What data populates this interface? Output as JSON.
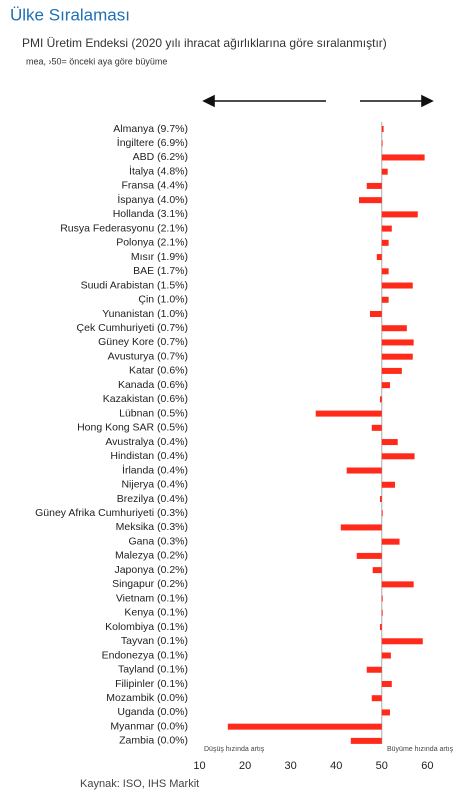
{
  "chart_data": {
    "type": "hbar",
    "title": "Ülke Sıralaması",
    "subtitle": "PMI Üretim Endeksi (2020 yılı ihracat ağırlıklarına göre sıralanmıştır)",
    "note": "mea, ›50= önceki aya göre büyüme",
    "annotations": [
      "Düşüş hızında artış",
      "Büyüme hızında artış"
    ],
    "source": "Kaynak: ISO, IHS Markit",
    "categories": [
      "Almanya (9.7%)",
      "İngiltere (6.9%)",
      "ABD (6.2%)",
      "İtalya (4.8%)",
      "Fransa (4.4%)",
      "İspanya (4.0%)",
      "Hollanda (3.1%)",
      "Rusya Federasyonu (2.1%)",
      "Polonya (2.1%)",
      "Mısır (1.9%)",
      "BAE (1.7%)",
      "Suudi Arabistan (1.5%)",
      "Çin (1.0%)",
      "Yunanistan (1.0%)",
      "Çek Cumhuriyeti (0.7%)",
      "Güney Kore (0.7%)",
      "Avusturya (0.7%)",
      "Katar (0.6%)",
      "Kanada (0.6%)",
      "Kazakistan (0.6%)",
      "Lübnan (0.5%)",
      "Hong Kong SAR (0.5%)",
      "Avustralya (0.4%)",
      "Hindistan (0.4%)",
      "İrlanda (0.4%)",
      "Nijerya (0.4%)",
      "Brezilya (0.4%)",
      "Güney Afrika Cumhuriyeti (0.3%)",
      "Meksika (0.3%)",
      "Gana (0.3%)",
      "Malezya (0.2%)",
      "Japonya (0.2%)",
      "Singapur (0.2%)",
      "Vietnam (0.1%)",
      "Kenya (0.1%)",
      "Kolombiya (0.1%)",
      "Tayvan (0.1%)",
      "Endonezya (0.1%)",
      "Tayland (0.1%)",
      "Filipinler (0.1%)",
      "Mozambik (0.0%)",
      "Uganda (0.0%)",
      "Myanmar (0.0%)",
      "Zambia (0.0%)"
    ],
    "values": [
      50.4,
      50.1,
      59.4,
      51.3,
      46.7,
      45.0,
      57.9,
      52.2,
      51.5,
      48.9,
      51.5,
      56.8,
      51.5,
      47.4,
      55.5,
      57.0,
      56.8,
      54.4,
      51.8,
      49.6,
      35.5,
      47.8,
      53.5,
      57.2,
      42.3,
      52.9,
      49.6,
      50.2,
      41.0,
      53.9,
      44.5,
      48.0,
      57.0,
      50.2,
      50.2,
      49.6,
      59.0,
      52.0,
      46.7,
      52.2,
      47.8,
      51.8,
      16.2,
      43.2
    ],
    "color": "#ff2a1a",
    "baseline": 50,
    "xlim": [
      9,
      63
    ],
    "xticks": [
      10,
      20,
      30,
      40,
      50,
      60
    ]
  }
}
